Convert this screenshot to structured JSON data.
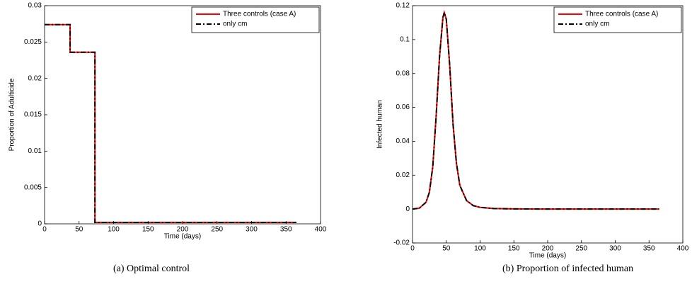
{
  "chart_data": [
    {
      "type": "line",
      "caption": "(a)  Optimal control",
      "xlabel": "Time (days)",
      "ylabel": "Proportion of Adulticide",
      "x": [
        0,
        37,
        37,
        73,
        73,
        365
      ],
      "series": [
        {
          "name": "Three controls (case A)",
          "color": "#ff0000",
          "values": [
            0.0274,
            0.0274,
            0.0236,
            0.0236,
            0.0002,
            0.0002
          ]
        },
        {
          "name": "only cm",
          "color": "#000000",
          "values": [
            0.0274,
            0.0274,
            0.0236,
            0.0236,
            0.0002,
            0.0002
          ]
        }
      ],
      "xlim": [
        0,
        400
      ],
      "xticks": [
        0,
        50,
        100,
        150,
        200,
        250,
        300,
        350,
        400
      ],
      "ylim": [
        0,
        0.03
      ],
      "yticks": [
        0,
        0.005,
        0.01,
        0.015,
        0.02,
        0.025,
        0.03
      ],
      "legend": "upper right"
    },
    {
      "type": "line",
      "caption": "(b)  Proportion of infected human",
      "xlabel": "Time (days)",
      "ylabel": "Infected human",
      "x": [
        0,
        10,
        20,
        25,
        30,
        35,
        40,
        45,
        47,
        50,
        55,
        60,
        65,
        70,
        80,
        90,
        100,
        120,
        150,
        200,
        250,
        300,
        365
      ],
      "series": [
        {
          "name": "Three controls (case A)",
          "color": "#ff0000",
          "values": [
            0,
            0.0005,
            0.004,
            0.01,
            0.025,
            0.055,
            0.09,
            0.113,
            0.116,
            0.112,
            0.085,
            0.05,
            0.027,
            0.014,
            0.005,
            0.002,
            0.001,
            0.0003,
            0.0001,
            0,
            0,
            0,
            0
          ]
        },
        {
          "name": "only cm",
          "color": "#000000",
          "values": [
            0,
            0.0005,
            0.004,
            0.01,
            0.025,
            0.055,
            0.09,
            0.113,
            0.116,
            0.112,
            0.085,
            0.05,
            0.027,
            0.014,
            0.005,
            0.002,
            0.001,
            0.0003,
            0.0001,
            0,
            0,
            0,
            0
          ]
        }
      ],
      "xlim": [
        0,
        400
      ],
      "xticks": [
        0,
        50,
        100,
        150,
        200,
        250,
        300,
        350,
        400
      ],
      "ylim": [
        -0.02,
        0.12
      ],
      "yticks": [
        -0.02,
        0,
        0.02,
        0.04,
        0.06,
        0.08,
        0.1,
        0.12
      ],
      "legend": "upper right"
    }
  ]
}
